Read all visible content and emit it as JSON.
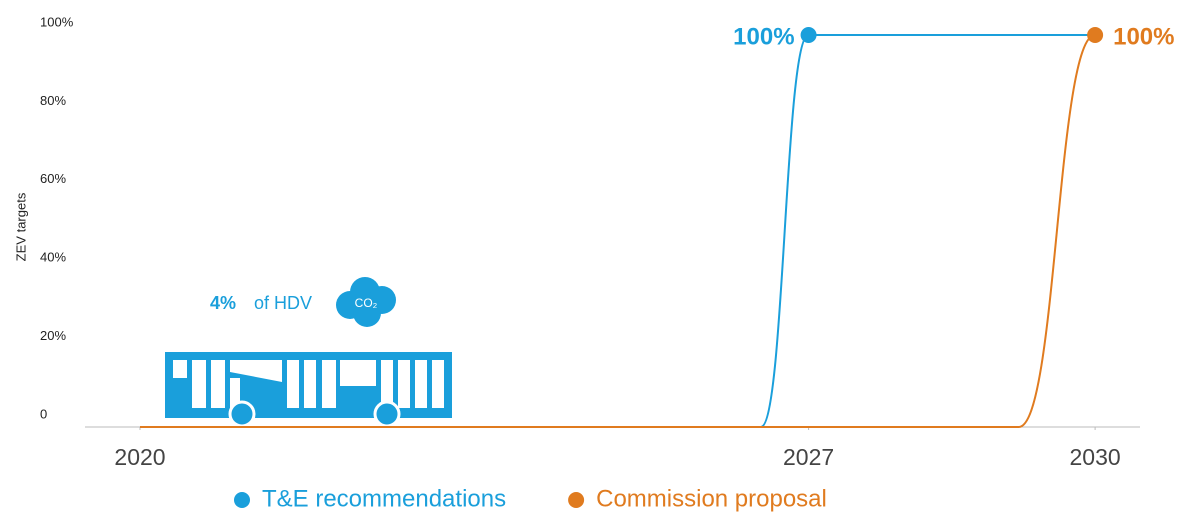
{
  "chart_data": {
    "type": "line",
    "y_axis_label": "ZEV targets",
    "xlim": [
      2020,
      2030.47
    ],
    "xticks": [
      2020,
      2027,
      2030
    ],
    "ylim": [
      0,
      100
    ],
    "yticks": [
      0,
      {
        "value": 20,
        "label": "20%"
      },
      {
        "value": 40,
        "label": "40%"
      },
      {
        "value": 60,
        "label": "60%"
      },
      {
        "value": 80,
        "label": "80%"
      },
      {
        "value": 100,
        "label": "100%"
      }
    ],
    "series": [
      {
        "name": "T&E recommendations",
        "color": "#1a9fdb",
        "x": [
          2020,
          2026.5,
          2027,
          2030
        ],
        "values": [
          0,
          0,
          100,
          100
        ],
        "value_labels": [
          null,
          null,
          "100%",
          null
        ]
      },
      {
        "name": "Commission proposal",
        "color": "#e07b1f",
        "x": [
          2020,
          2029.2,
          2030
        ],
        "values": [
          0,
          0,
          100
        ],
        "value_labels": [
          null,
          null,
          "100%"
        ]
      }
    ],
    "annotations": [
      "4%",
      "of HDV",
      "CO₂"
    ]
  }
}
